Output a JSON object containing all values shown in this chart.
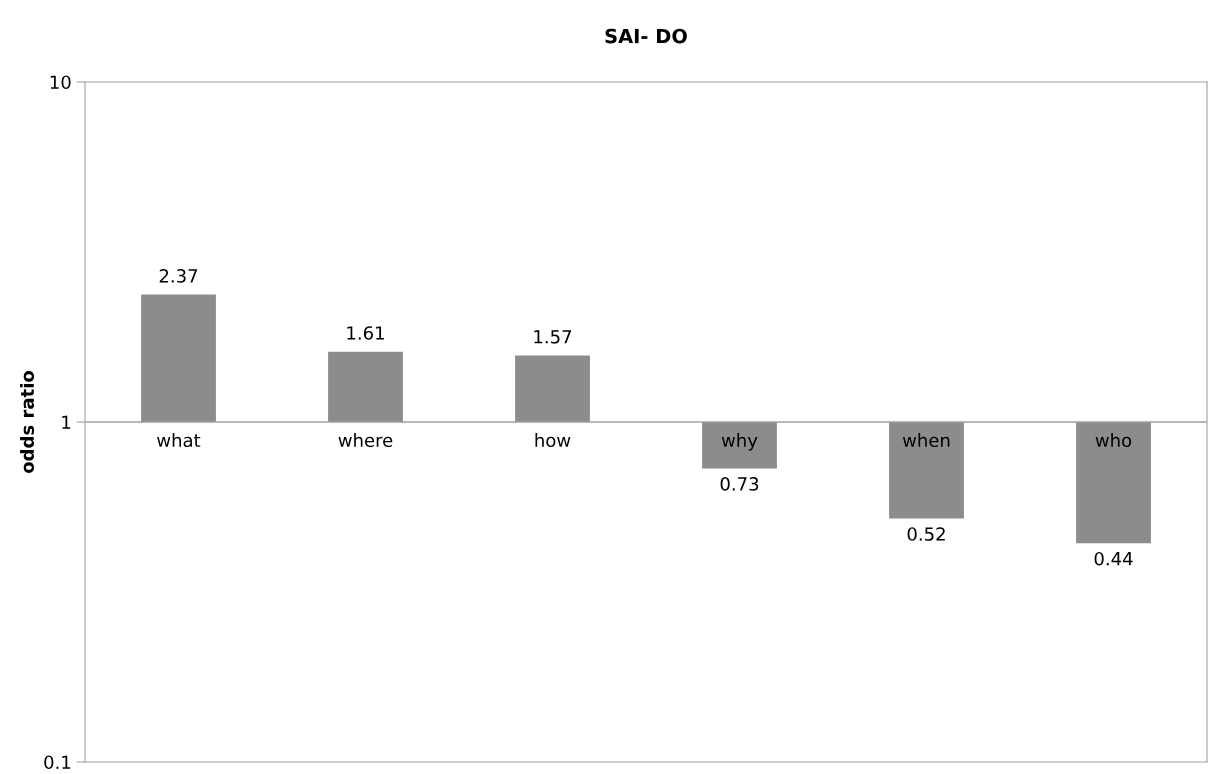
{
  "chart_data": {
    "type": "bar",
    "title": "SAI- DO",
    "ylabel": "odds ratio",
    "categories": [
      "what",
      "where",
      "how",
      "why",
      "when",
      "who"
    ],
    "base": [
      1,
      1,
      1,
      1,
      1,
      1
    ],
    "values": [
      1.37,
      0.61,
      0.57,
      -0.27,
      -0.48,
      -0.56
    ],
    "value_labels": [
      "2.37",
      "1.61",
      "1.57",
      "0.73",
      "0.52",
      "0.44"
    ],
    "color": "#8c8c8c",
    "log": true,
    "ylim": [
      0.1,
      10
    ],
    "yticks": [
      0.1,
      1,
      10
    ],
    "grid": false
  }
}
